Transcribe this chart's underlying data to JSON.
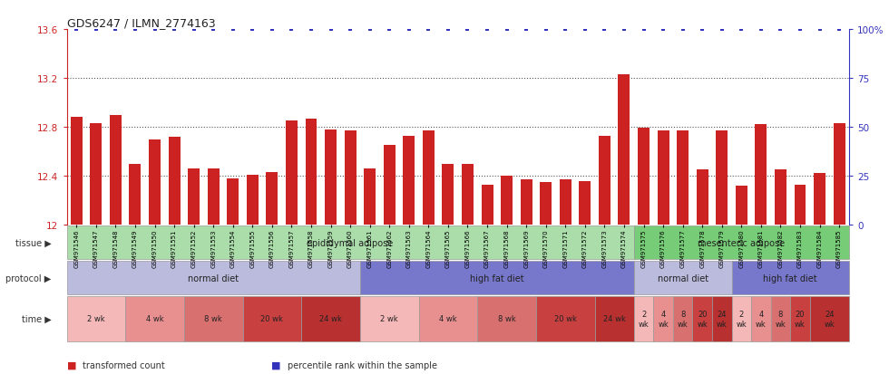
{
  "title": "GDS6247 / ILMN_2774163",
  "samples": [
    "GSM971546",
    "GSM971547",
    "GSM971548",
    "GSM971549",
    "GSM971550",
    "GSM971551",
    "GSM971552",
    "GSM971553",
    "GSM971554",
    "GSM971555",
    "GSM971556",
    "GSM971557",
    "GSM971558",
    "GSM971559",
    "GSM971560",
    "GSM971561",
    "GSM971562",
    "GSM971563",
    "GSM971564",
    "GSM971565",
    "GSM971566",
    "GSM971567",
    "GSM971568",
    "GSM971569",
    "GSM971570",
    "GSM971571",
    "GSM971572",
    "GSM971573",
    "GSM971574",
    "GSM971575",
    "GSM971576",
    "GSM971577",
    "GSM971578",
    "GSM971579",
    "GSM971580",
    "GSM971581",
    "GSM971582",
    "GSM971583",
    "GSM971584",
    "GSM971585"
  ],
  "bar_values": [
    12.88,
    12.83,
    12.9,
    12.5,
    12.7,
    12.72,
    12.46,
    12.46,
    12.38,
    12.41,
    12.43,
    12.85,
    12.87,
    12.78,
    12.77,
    12.46,
    12.65,
    12.73,
    12.77,
    12.5,
    12.5,
    12.33,
    12.4,
    12.37,
    12.35,
    12.37,
    12.36,
    12.73,
    13.23,
    12.79,
    12.77,
    12.77,
    12.45,
    12.77,
    12.32,
    12.82,
    12.45,
    12.33,
    12.42,
    12.83
  ],
  "ymin": 12.0,
  "ymax": 13.6,
  "yticks": [
    12.0,
    12.4,
    12.8,
    13.2,
    13.6
  ],
  "ytick_labels": [
    "12",
    "12.4",
    "12.8",
    "13.2",
    "13.6"
  ],
  "y2ticks": [
    0,
    25,
    50,
    75,
    100
  ],
  "y2tick_labels": [
    "0",
    "25",
    "50",
    "75",
    "100%"
  ],
  "bar_color": "#cc2222",
  "percentile_color": "#3333bb",
  "dotted_line_color": "#555555",
  "tissue_groups": [
    {
      "label": "epididymal adipose",
      "start": 0,
      "end": 29,
      "color": "#aaddaa"
    },
    {
      "label": "mesenteric adipose",
      "start": 29,
      "end": 40,
      "color": "#77cc77"
    }
  ],
  "protocol_groups": [
    {
      "label": "normal diet",
      "start": 0,
      "end": 15,
      "color": "#bbbbdd"
    },
    {
      "label": "high fat diet",
      "start": 15,
      "end": 29,
      "color": "#7777cc"
    },
    {
      "label": "normal diet",
      "start": 29,
      "end": 34,
      "color": "#bbbbdd"
    },
    {
      "label": "high fat diet",
      "start": 34,
      "end": 40,
      "color": "#7777cc"
    }
  ],
  "time_groups": [
    {
      "label": "2 wk",
      "start": 0,
      "end": 3,
      "color": "#f5b8b8"
    },
    {
      "label": "4 wk",
      "start": 3,
      "end": 6,
      "color": "#e89090"
    },
    {
      "label": "8 wk",
      "start": 6,
      "end": 9,
      "color": "#d87070"
    },
    {
      "label": "20 wk",
      "start": 9,
      "end": 12,
      "color": "#c84040"
    },
    {
      "label": "24 wk",
      "start": 12,
      "end": 15,
      "color": "#b83030"
    },
    {
      "label": "2 wk",
      "start": 15,
      "end": 18,
      "color": "#f5b8b8"
    },
    {
      "label": "4 wk",
      "start": 18,
      "end": 21,
      "color": "#e89090"
    },
    {
      "label": "8 wk",
      "start": 21,
      "end": 24,
      "color": "#d87070"
    },
    {
      "label": "20 wk",
      "start": 24,
      "end": 27,
      "color": "#c84040"
    },
    {
      "label": "24 wk",
      "start": 27,
      "end": 29,
      "color": "#b83030"
    },
    {
      "label": "2\nwk",
      "start": 29,
      "end": 30,
      "color": "#f5b8b8"
    },
    {
      "label": "4\nwk",
      "start": 30,
      "end": 31,
      "color": "#e89090"
    },
    {
      "label": "8\nwk",
      "start": 31,
      "end": 32,
      "color": "#d87070"
    },
    {
      "label": "20\nwk",
      "start": 32,
      "end": 33,
      "color": "#c84040"
    },
    {
      "label": "24\nwk",
      "start": 33,
      "end": 34,
      "color": "#b83030"
    },
    {
      "label": "2\nwk",
      "start": 34,
      "end": 35,
      "color": "#f5b8b8"
    },
    {
      "label": "4\nwk",
      "start": 35,
      "end": 36,
      "color": "#e89090"
    },
    {
      "label": "8\nwk",
      "start": 36,
      "end": 37,
      "color": "#d87070"
    },
    {
      "label": "20\nwk",
      "start": 37,
      "end": 38,
      "color": "#c84040"
    },
    {
      "label": "24\nwk",
      "start": 38,
      "end": 40,
      "color": "#b83030"
    }
  ],
  "legend_items": [
    {
      "label": "transformed count",
      "color": "#cc2222"
    },
    {
      "label": "percentile rank within the sample",
      "color": "#3333bb"
    }
  ],
  "bg_color": "#ffffff",
  "label_arrow": "▶"
}
